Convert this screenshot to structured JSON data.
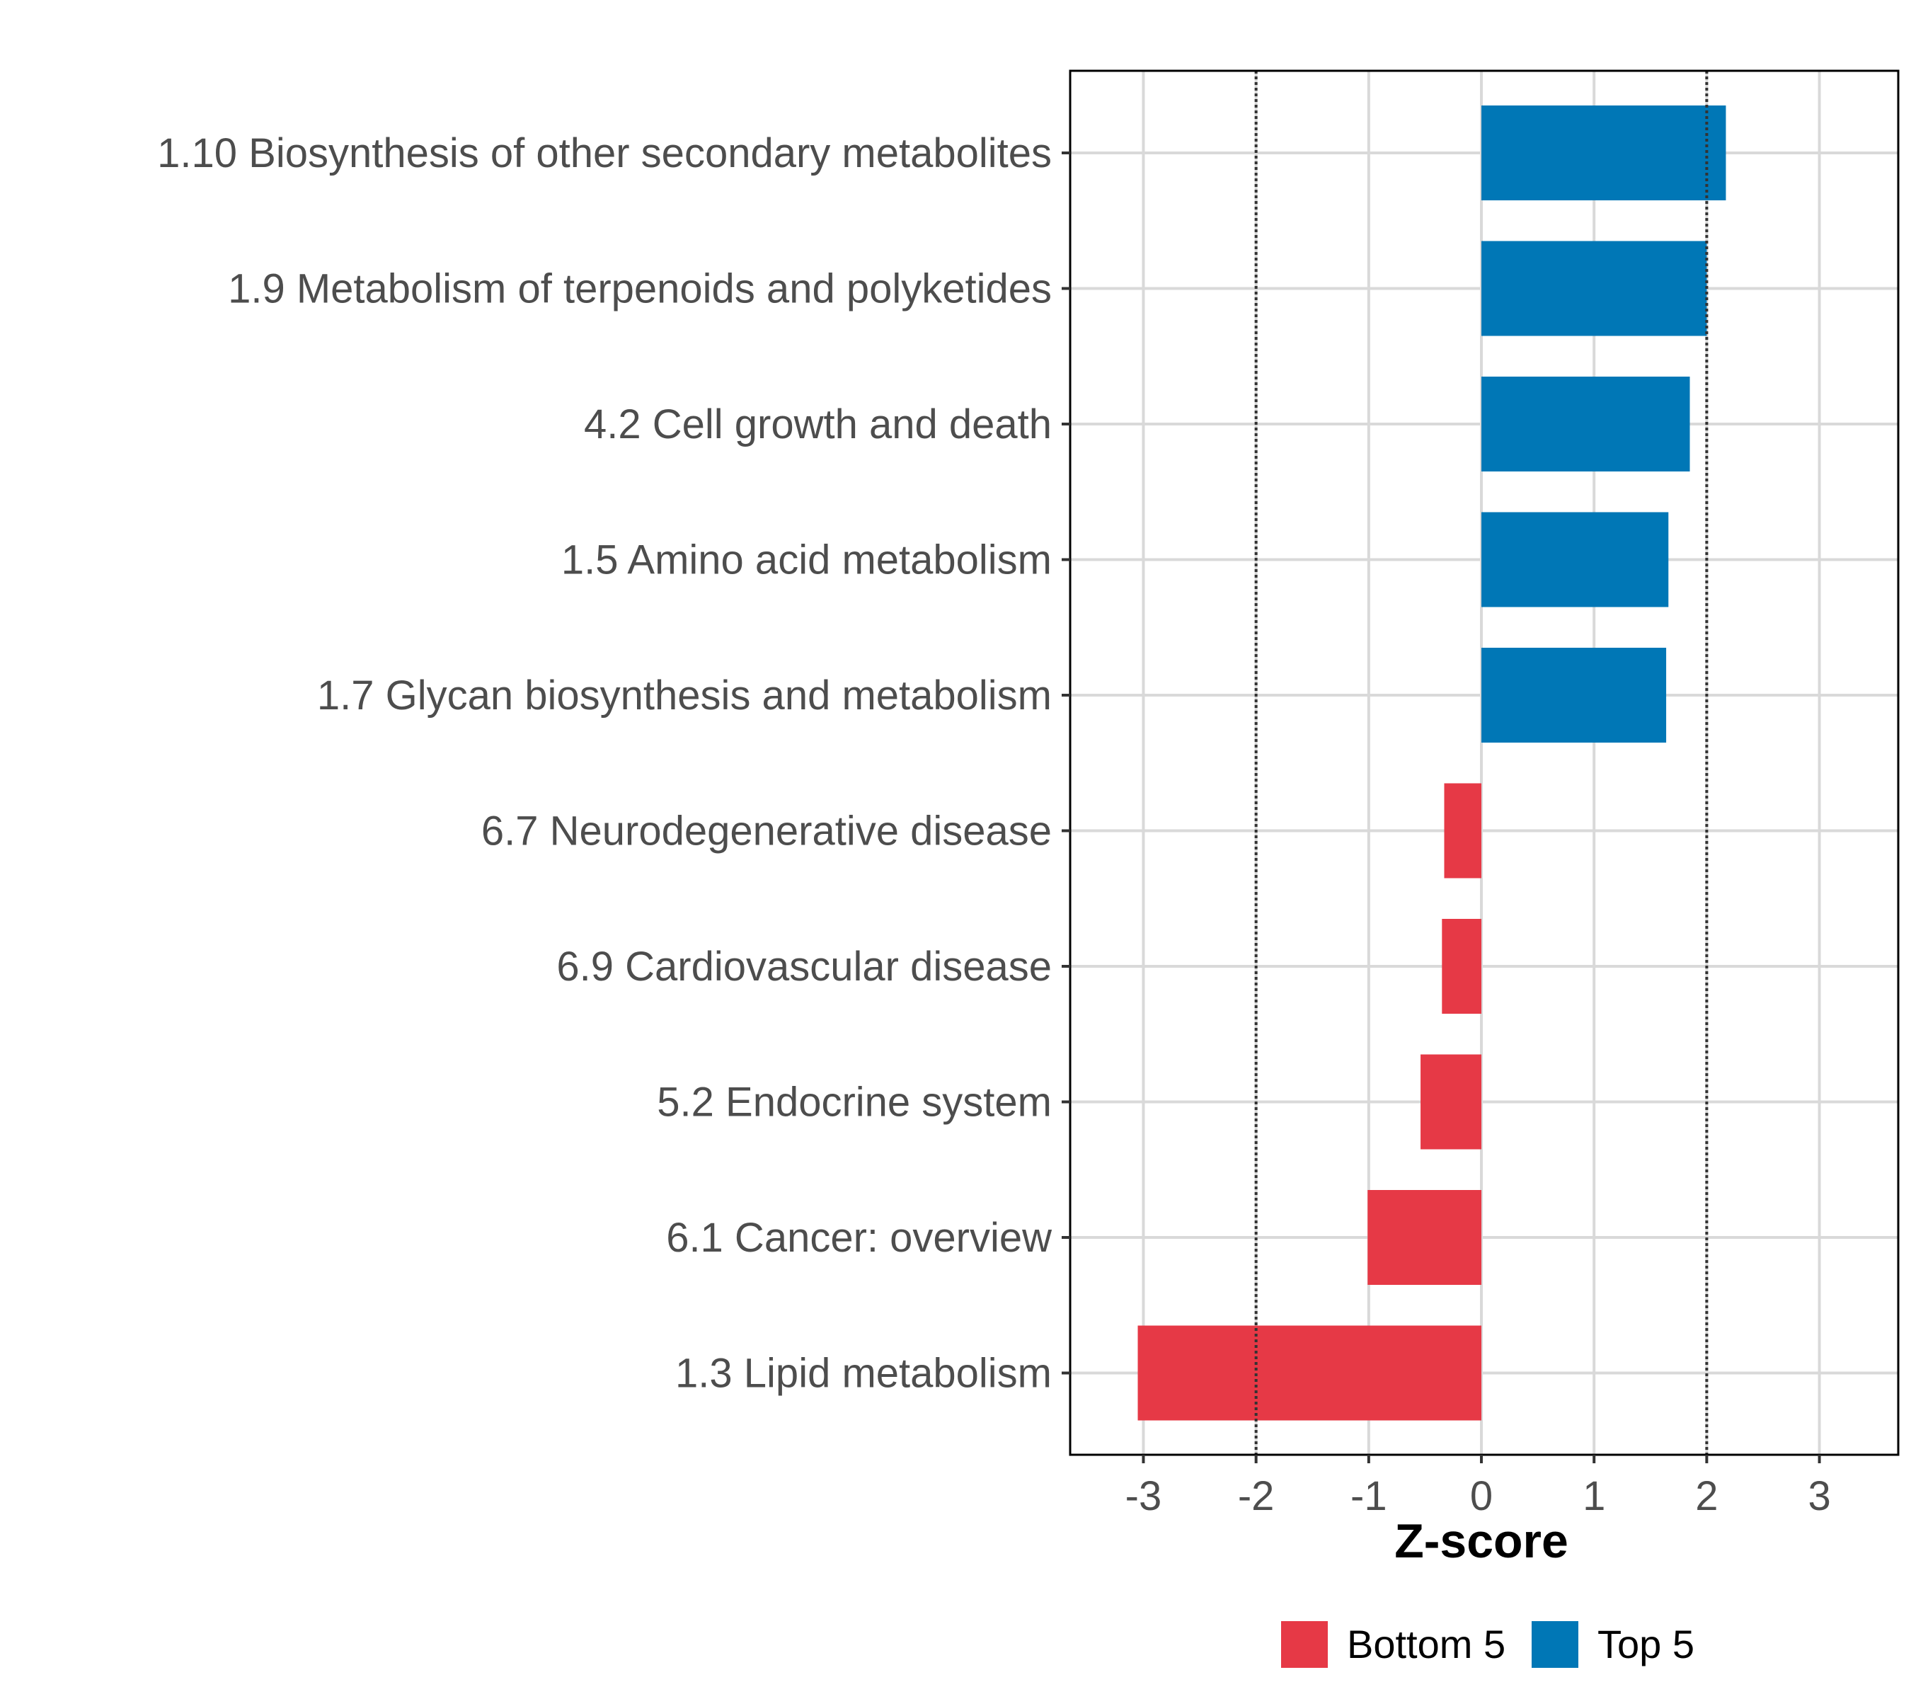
{
  "chart_data": {
    "type": "bar",
    "orientation": "horizontal",
    "title": "",
    "xlabel": "Z-score",
    "ylabel": "",
    "xlim": [
      -3.65,
      3.7
    ],
    "xticks": [
      -3,
      -2,
      -1,
      0,
      1,
      2,
      3
    ],
    "xtick_labels": [
      "-3",
      "-2",
      "-1",
      "0",
      "1",
      "2",
      "3"
    ],
    "threshold_lines": [
      -2,
      2
    ],
    "grid": true,
    "legend_position": "bottom",
    "categories": [
      "1.10 Biosynthesis of other secondary metabolites",
      "1.9 Metabolism of terpenoids and polyketides",
      "4.2 Cell growth and death",
      "1.5 Amino acid metabolism",
      "1.7 Glycan biosynthesis and metabolism",
      "6.7 Neurodegenerative disease",
      "6.9 Cardiovascular disease",
      "5.2 Endocrine system",
      "6.1 Cancer: overview",
      "1.3 Lipid metabolism"
    ],
    "values": [
      2.17,
      2.0,
      1.85,
      1.66,
      1.64,
      -0.33,
      -0.35,
      -0.54,
      -1.01,
      -3.05
    ],
    "groups": [
      "Top 5",
      "Top 5",
      "Top 5",
      "Top 5",
      "Top 5",
      "Bottom 5",
      "Bottom 5",
      "Bottom 5",
      "Bottom 5",
      "Bottom 5"
    ],
    "legend": [
      {
        "name": "Bottom 5",
        "color": "#E63946"
      },
      {
        "name": "Top 5",
        "color": "#0077B6"
      }
    ]
  }
}
